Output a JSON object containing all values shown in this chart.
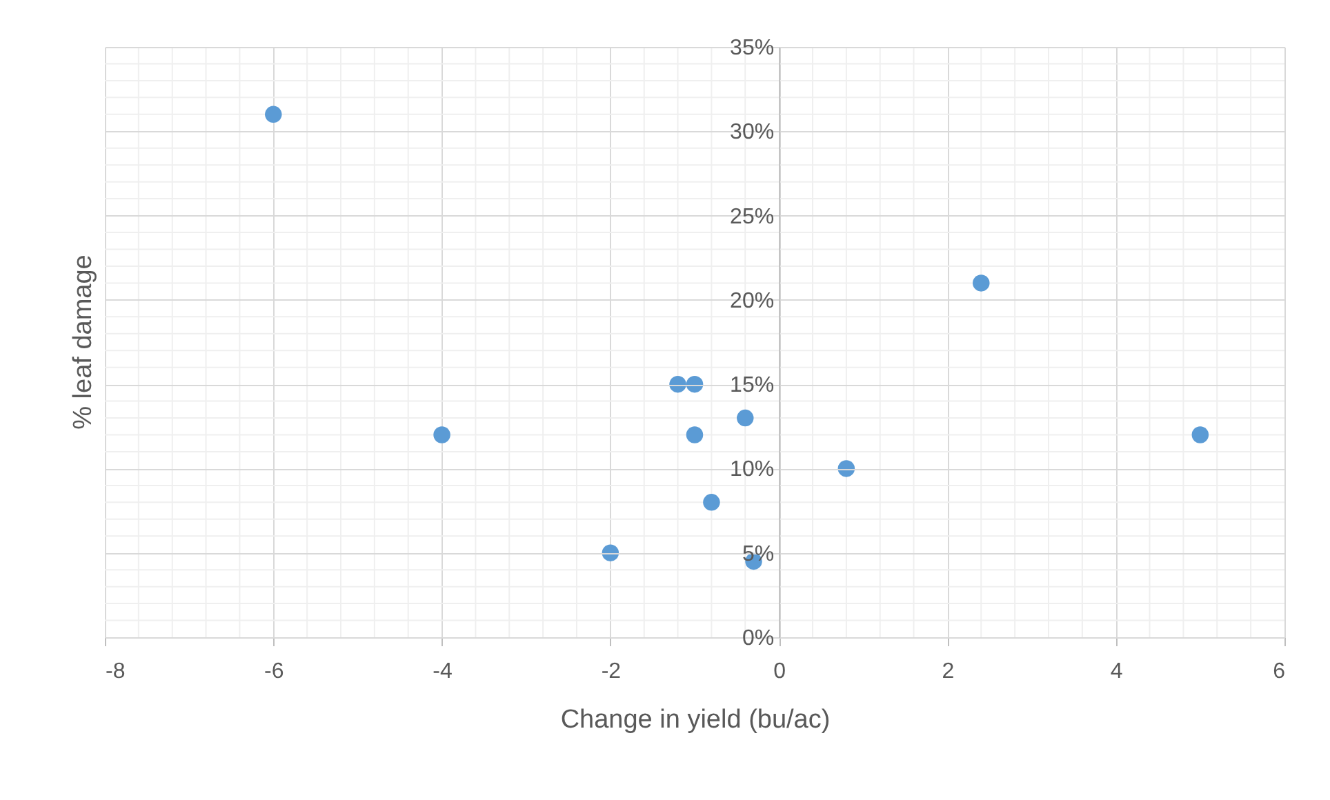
{
  "chart_data": {
    "type": "scatter",
    "xlabel": "Change in yield (bu/ac)",
    "ylabel": "% leaf damage",
    "x": [
      -6,
      -4,
      -2,
      -1.2,
      -1.0,
      -1.0,
      -0.4,
      -0.8,
      -0.3,
      0.8,
      2.4,
      5
    ],
    "series": [
      {
        "color": "#5b9bd5",
        "values": [
          31,
          12,
          5,
          15,
          15,
          12,
          13,
          8,
          4.5,
          10,
          21,
          12
        ]
      }
    ],
    "xlim": [
      -8,
      6
    ],
    "xticks": [
      -8,
      -6,
      -4,
      -2,
      0,
      2,
      4,
      6
    ],
    "ylim": [
      0,
      35
    ],
    "yticks": [
      {
        "value": 0,
        "label": "0%"
      },
      {
        "value": 5,
        "label": "5%"
      },
      {
        "value": 10,
        "label": "10%"
      },
      {
        "value": 15,
        "label": "15%"
      },
      {
        "value": 20,
        "label": "20%"
      },
      {
        "value": 25,
        "label": "25%"
      },
      {
        "value": 30,
        "label": "30%"
      },
      {
        "value": 35,
        "label": "35%"
      }
    ],
    "grid": true,
    "marker": "circle",
    "legend": false
  }
}
